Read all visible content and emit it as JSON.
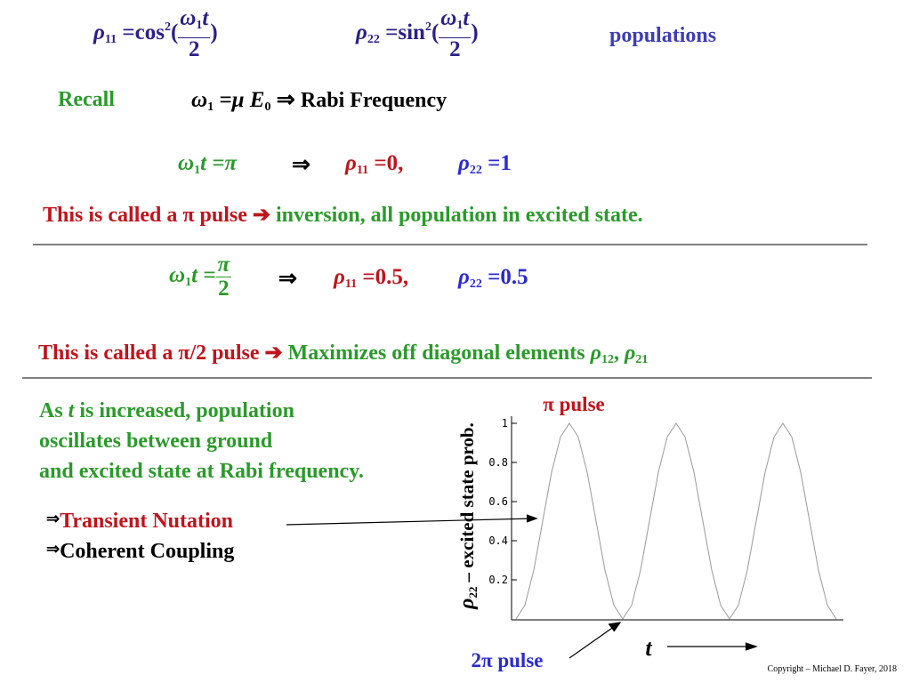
{
  "top": {
    "rho11": {
      "symbol": "ρ",
      "sub": "11",
      "equals": "=cos",
      "power": "2",
      "open": "(",
      "num": "ω",
      "num_sub": "1",
      "num_var": "t",
      "den": "2",
      "close": ")"
    },
    "rho22": {
      "symbol": "ρ",
      "sub": "22",
      "equals": "=sin",
      "power": "2",
      "open": "(",
      "num": "ω",
      "num_sub": "1",
      "num_var": "t",
      "den": "2",
      "close": ")"
    },
    "label": "populations"
  },
  "recall": {
    "label": "Recall",
    "omega": "ω",
    "omega_sub": "1",
    "equals": "=μ",
    "field": "E",
    "field_sub": "0",
    "implies": "⇒",
    "text": "Rabi Frequency"
  },
  "pi_case": {
    "lhs": "ω",
    "lhs_sub": "1",
    "lhs_rest": "t =π",
    "implies": "⇒",
    "rho11": {
      "symbol": "ρ",
      "sub": "11",
      "value": "=0,"
    },
    "rho22": {
      "symbol": "ρ",
      "sub": "22",
      "value": "=1"
    },
    "note_red": "This is called a π pulse",
    "arrow": "➔",
    "note_green": "inversion, all population in excited state."
  },
  "half_pi_case": {
    "lhs": "ω",
    "lhs_sub": "1",
    "lhs_rest": "t =",
    "num": "π",
    "den": "2",
    "implies": "⇒",
    "rho11": {
      "symbol": "ρ",
      "sub": "11",
      "value": "=0.5,"
    },
    "rho22": {
      "symbol": "ρ",
      "sub": "22",
      "value": "=0.5"
    },
    "note_red": "This is called a π/2 pulse",
    "arrow": "➔",
    "note_green": "Maximizes off diagonal elements",
    "rho12": "ρ",
    "rho12_sub": "12",
    "comma": ",",
    "rho21": "ρ",
    "rho21_sub": "21"
  },
  "oscillation": {
    "line1_start": "As",
    "line1_var": "t",
    "line1_end": "is increased, population",
    "line2": "oscillates between ground",
    "line3": "and excited state at Rabi frequency.",
    "items": [
      {
        "arrow": "⇒",
        "text": "Transient Nutation"
      },
      {
        "arrow": "⇒",
        "text": "Coherent Coupling"
      }
    ]
  },
  "plot": {
    "top_label": "π pulse",
    "bottom_label": "2π pulse",
    "ylabel_symbol": "ρ",
    "ylabel_sub": "22",
    "ylabel_rest": "– excited state prob.",
    "xlabel": "t",
    "ylim": [
      0,
      1.03
    ],
    "yticks": [
      0.2,
      0.4,
      0.6,
      0.8,
      1
    ],
    "values": [
      0,
      0.07,
      0.25,
      0.5,
      0.75,
      0.93,
      1,
      0.93,
      0.75,
      0.5,
      0.25,
      0.07,
      0,
      0.07,
      0.25,
      0.5,
      0.75,
      0.93,
      1,
      0.93,
      0.75,
      0.5,
      0.25,
      0.07,
      0,
      0.07,
      0.25,
      0.5,
      0.75,
      0.93,
      1,
      0.93,
      0.75,
      0.5,
      0.25,
      0.07,
      0
    ]
  },
  "copyright": "Copyright – Michael D. Fayer, 2018"
}
